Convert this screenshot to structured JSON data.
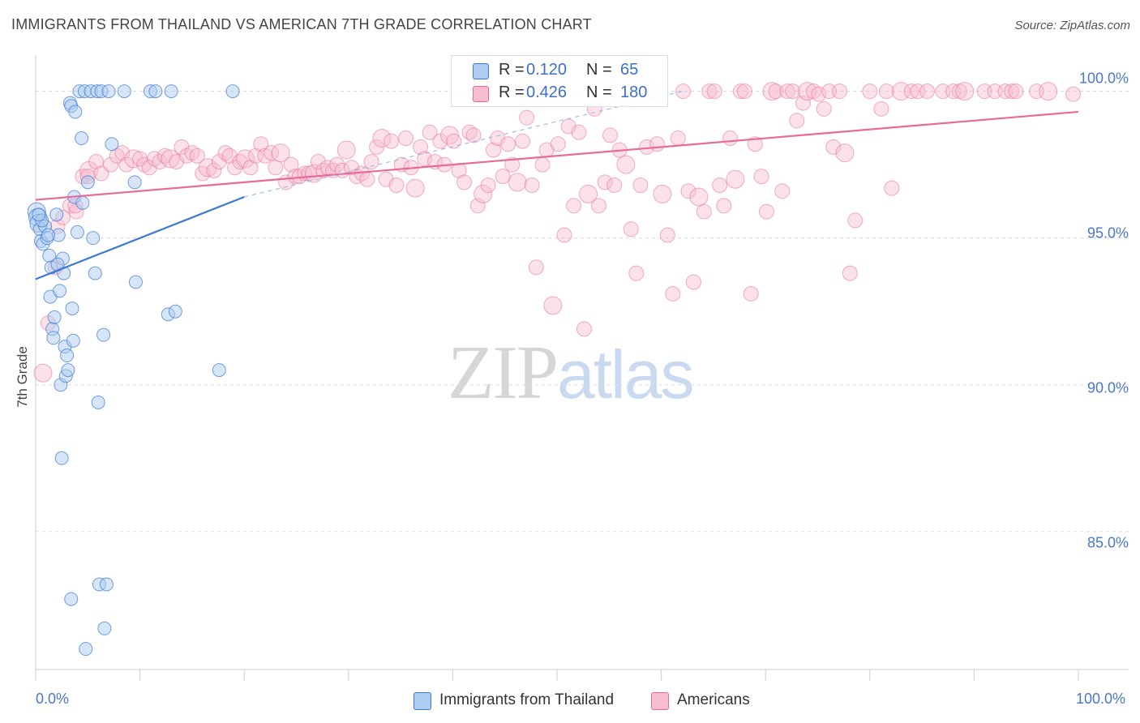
{
  "header": {
    "title": "IMMIGRANTS FROM THAILAND VS AMERICAN 7TH GRADE CORRELATION CHART",
    "source": "Source: ZipAtlas.com"
  },
  "legend": {
    "series1": {
      "r_label": "R =",
      "r_value": "0.120",
      "n_label": "N =",
      "n_value": "65"
    },
    "series2": {
      "r_label": "R =",
      "r_value": "0.426",
      "n_label": "N =",
      "n_value": "180"
    }
  },
  "bottom_legend": {
    "series1": "Immigrants from Thailand",
    "series2": "Americans"
  },
  "watermark": {
    "zip": "ZIP",
    "atlas": "atlas"
  },
  "colors": {
    "blue": "#3b78d4",
    "blue_fill": "#aecbf0",
    "pink": "#e86b97",
    "pink_fill": "#f6bdd0",
    "grid": "#dcdcdc",
    "tick_text": "#4a78c7"
  },
  "chart_data": {
    "type": "scatter",
    "title": "IMMIGRANTS FROM THAILAND VS AMERICAN 7TH GRADE CORRELATION CHART",
    "xlabel": "",
    "ylabel": "7th Grade",
    "xlim": [
      0,
      100
    ],
    "ylim": [
      80.3,
      100.9
    ],
    "x_tick_labels": [
      "0.0%",
      "100.0%"
    ],
    "y_ticks": [
      85,
      90,
      95,
      100
    ],
    "y_tick_labels": [
      "85.0%",
      "90.0%",
      "95.0%",
      "100.0%"
    ],
    "grid": true,
    "legend_position": "top-center",
    "series": [
      {
        "name": "Immigrants from Thailand",
        "color": "#3b78d4",
        "r": 0.12,
        "n": 65,
        "trend": {
          "x": [
            0,
            20
          ],
          "y": [
            93.6,
            96.4
          ]
        },
        "trend_dashed": {
          "x": [
            20,
            62
          ],
          "y": [
            96.4,
            100.0
          ]
        },
        "points": [
          [
            0.1,
            95.9
          ],
          [
            0.2,
            95.7
          ],
          [
            0.3,
            95.5
          ],
          [
            0.4,
            95.3
          ],
          [
            0.5,
            94.9
          ],
          [
            0.7,
            94.8
          ],
          [
            0.9,
            95.4
          ],
          [
            1.1,
            95.0
          ],
          [
            1.3,
            94.4
          ],
          [
            1.5,
            94.0
          ],
          [
            1.4,
            93.0
          ],
          [
            1.6,
            91.9
          ],
          [
            1.7,
            91.6
          ],
          [
            1.8,
            92.3
          ],
          [
            2.0,
            95.8
          ],
          [
            2.2,
            95.1
          ],
          [
            2.3,
            93.2
          ],
          [
            2.4,
            90.0
          ],
          [
            2.5,
            87.5
          ],
          [
            2.6,
            94.3
          ],
          [
            2.7,
            93.8
          ],
          [
            2.8,
            91.3
          ],
          [
            2.9,
            90.3
          ],
          [
            3.0,
            91.0
          ],
          [
            3.1,
            90.5
          ],
          [
            3.3,
            99.6
          ],
          [
            3.4,
            99.5
          ],
          [
            3.5,
            92.6
          ],
          [
            3.6,
            91.5
          ],
          [
            3.7,
            96.4
          ],
          [
            3.8,
            99.3
          ],
          [
            4.0,
            95.2
          ],
          [
            4.2,
            100.0
          ],
          [
            4.4,
            98.4
          ],
          [
            4.5,
            96.2
          ],
          [
            4.7,
            100.0
          ],
          [
            4.8,
            81.0
          ],
          [
            5.0,
            96.9
          ],
          [
            5.3,
            100.0
          ],
          [
            5.5,
            95.0
          ],
          [
            5.7,
            93.8
          ],
          [
            5.9,
            100.0
          ],
          [
            6.0,
            89.4
          ],
          [
            6.1,
            83.2
          ],
          [
            6.3,
            100.0
          ],
          [
            6.5,
            91.7
          ],
          [
            6.6,
            81.7
          ],
          [
            6.8,
            83.2
          ],
          [
            7.0,
            100.0
          ],
          [
            7.3,
            98.2
          ],
          [
            8.5,
            100.0
          ],
          [
            9.5,
            96.9
          ],
          [
            9.6,
            93.5
          ],
          [
            11.0,
            100.0
          ],
          [
            11.5,
            100.0
          ],
          [
            12.7,
            92.4
          ],
          [
            13.0,
            100.0
          ],
          [
            13.4,
            92.5
          ],
          [
            17.6,
            90.5
          ],
          [
            18.9,
            100.0
          ],
          [
            3.4,
            82.7
          ],
          [
            0.6,
            95.6
          ],
          [
            1.2,
            95.1
          ],
          [
            2.1,
            94.1
          ],
          [
            0.3,
            95.8
          ]
        ]
      },
      {
        "name": "Americans",
        "color": "#e86b97",
        "r": 0.426,
        "n": 180,
        "trend": {
          "x": [
            0,
            100
          ],
          "y": [
            96.3,
            99.3
          ]
        },
        "points": [
          [
            0.7,
            90.4
          ],
          [
            1.2,
            92.1
          ],
          [
            1.9,
            94.0
          ],
          [
            2.1,
            95.4
          ],
          [
            3.3,
            96.1
          ],
          [
            3.9,
            95.9
          ],
          [
            4.5,
            97.1
          ],
          [
            5.1,
            97.3
          ],
          [
            5.8,
            97.6
          ],
          [
            6.3,
            97.2
          ],
          [
            7.2,
            97.5
          ],
          [
            7.8,
            97.8
          ],
          [
            8.3,
            97.9
          ],
          [
            8.7,
            97.5
          ],
          [
            9.4,
            97.7
          ],
          [
            10.0,
            97.7
          ],
          [
            10.4,
            97.5
          ],
          [
            10.9,
            97.4
          ],
          [
            11.4,
            97.7
          ],
          [
            11.9,
            97.6
          ],
          [
            12.4,
            97.8
          ],
          [
            12.9,
            97.7
          ],
          [
            13.5,
            97.6
          ],
          [
            14.0,
            98.1
          ],
          [
            14.5,
            97.8
          ],
          [
            15.0,
            97.9
          ],
          [
            15.5,
            97.8
          ],
          [
            16.0,
            97.2
          ],
          [
            16.5,
            97.4
          ],
          [
            17.1,
            97.3
          ],
          [
            17.6,
            97.6
          ],
          [
            18.2,
            97.9
          ],
          [
            18.6,
            97.8
          ],
          [
            19.1,
            97.4
          ],
          [
            19.6,
            97.6
          ],
          [
            20.1,
            97.7
          ],
          [
            20.6,
            97.4
          ],
          [
            21.1,
            97.8
          ],
          [
            21.6,
            98.2
          ],
          [
            22.0,
            97.8
          ],
          [
            22.6,
            97.9
          ],
          [
            23.0,
            97.4
          ],
          [
            23.5,
            97.9
          ],
          [
            24.0,
            96.9
          ],
          [
            24.5,
            97.5
          ],
          [
            24.9,
            97.1
          ],
          [
            25.3,
            97.1
          ],
          [
            25.8,
            97.2
          ],
          [
            26.2,
            97.2
          ],
          [
            26.7,
            97.2
          ],
          [
            27.1,
            97.6
          ],
          [
            27.6,
            97.3
          ],
          [
            28.0,
            97.4
          ],
          [
            28.5,
            97.3
          ],
          [
            28.9,
            97.5
          ],
          [
            29.4,
            97.3
          ],
          [
            29.8,
            98.0
          ],
          [
            30.3,
            97.4
          ],
          [
            30.8,
            97.1
          ],
          [
            31.3,
            97.2
          ],
          [
            31.8,
            97.0
          ],
          [
            32.2,
            97.6
          ],
          [
            32.7,
            98.1
          ],
          [
            33.2,
            98.4
          ],
          [
            33.6,
            97.0
          ],
          [
            34.1,
            98.3
          ],
          [
            34.6,
            96.8
          ],
          [
            35.1,
            97.5
          ],
          [
            35.5,
            98.4
          ],
          [
            36.0,
            97.4
          ],
          [
            36.4,
            96.7
          ],
          [
            36.9,
            98.1
          ],
          [
            37.3,
            97.7
          ],
          [
            37.8,
            98.6
          ],
          [
            38.3,
            97.6
          ],
          [
            38.8,
            98.3
          ],
          [
            39.2,
            97.5
          ],
          [
            39.7,
            98.5
          ],
          [
            40.1,
            98.3
          ],
          [
            40.6,
            97.3
          ],
          [
            41.1,
            96.9
          ],
          [
            41.6,
            98.6
          ],
          [
            42.0,
            98.5
          ],
          [
            42.4,
            96.1
          ],
          [
            42.9,
            96.5
          ],
          [
            43.4,
            96.8
          ],
          [
            43.9,
            98.0
          ],
          [
            44.3,
            98.4
          ],
          [
            44.8,
            97.1
          ],
          [
            45.3,
            98.2
          ],
          [
            45.7,
            97.5
          ],
          [
            46.2,
            96.9
          ],
          [
            46.7,
            98.3
          ],
          [
            47.1,
            99.1
          ],
          [
            47.6,
            96.8
          ],
          [
            48.0,
            94.0
          ],
          [
            48.6,
            97.5
          ],
          [
            49.0,
            98.0
          ],
          [
            49.6,
            92.7
          ],
          [
            50.1,
            98.2
          ],
          [
            50.7,
            95.1
          ],
          [
            51.1,
            98.8
          ],
          [
            51.6,
            96.1
          ],
          [
            52.1,
            98.6
          ],
          [
            52.6,
            91.9
          ],
          [
            53.0,
            96.5
          ],
          [
            53.6,
            99.4
          ],
          [
            54.0,
            96.1
          ],
          [
            54.6,
            96.9
          ],
          [
            55.1,
            98.5
          ],
          [
            55.5,
            96.8
          ],
          [
            56.0,
            98.0
          ],
          [
            56.6,
            97.5
          ],
          [
            57.1,
            95.3
          ],
          [
            57.6,
            93.8
          ],
          [
            58.0,
            96.8
          ],
          [
            58.6,
            98.1
          ],
          [
            59.0,
            100.0
          ],
          [
            59.6,
            98.2
          ],
          [
            60.1,
            96.5
          ],
          [
            60.6,
            95.1
          ],
          [
            61.1,
            93.1
          ],
          [
            61.6,
            98.4
          ],
          [
            62.1,
            100.0
          ],
          [
            62.6,
            96.6
          ],
          [
            63.1,
            93.5
          ],
          [
            63.6,
            96.4
          ],
          [
            64.1,
            95.9
          ],
          [
            64.6,
            100.0
          ],
          [
            65.1,
            100.0
          ],
          [
            65.6,
            96.8
          ],
          [
            66.0,
            96.1
          ],
          [
            66.6,
            98.4
          ],
          [
            67.1,
            97.0
          ],
          [
            67.6,
            100.0
          ],
          [
            68.0,
            100.0
          ],
          [
            68.6,
            93.1
          ],
          [
            69.0,
            98.2
          ],
          [
            69.6,
            97.1
          ],
          [
            70.1,
            95.9
          ],
          [
            70.6,
            100.0
          ],
          [
            71.0,
            100.0
          ],
          [
            71.6,
            96.6
          ],
          [
            72.1,
            100.0
          ],
          [
            72.6,
            100.0
          ],
          [
            73.0,
            99.0
          ],
          [
            73.6,
            99.6
          ],
          [
            74.0,
            100.0
          ],
          [
            74.6,
            100.0
          ],
          [
            75.1,
            99.9
          ],
          [
            75.6,
            99.4
          ],
          [
            76.1,
            100.0
          ],
          [
            76.5,
            98.1
          ],
          [
            77.1,
            100.0
          ],
          [
            77.6,
            97.9
          ],
          [
            78.1,
            93.8
          ],
          [
            78.6,
            95.6
          ],
          [
            80.0,
            100.0
          ],
          [
            81.1,
            99.4
          ],
          [
            81.6,
            100.0
          ],
          [
            82.1,
            96.7
          ],
          [
            83.0,
            100.0
          ],
          [
            84.0,
            100.0
          ],
          [
            84.6,
            100.0
          ],
          [
            85.5,
            100.0
          ],
          [
            87.0,
            100.0
          ],
          [
            88.0,
            100.0
          ],
          [
            88.6,
            100.0
          ],
          [
            89.1,
            100.0
          ],
          [
            91.0,
            100.0
          ],
          [
            92.0,
            100.0
          ],
          [
            93.0,
            100.0
          ],
          [
            93.6,
            100.0
          ],
          [
            94.0,
            100.0
          ],
          [
            96.0,
            100.0
          ],
          [
            97.1,
            100.0
          ],
          [
            99.5,
            99.9
          ],
          [
            5.0,
            97.1
          ],
          [
            3.8,
            96.1
          ],
          [
            2.6,
            95.7
          ]
        ]
      }
    ]
  }
}
